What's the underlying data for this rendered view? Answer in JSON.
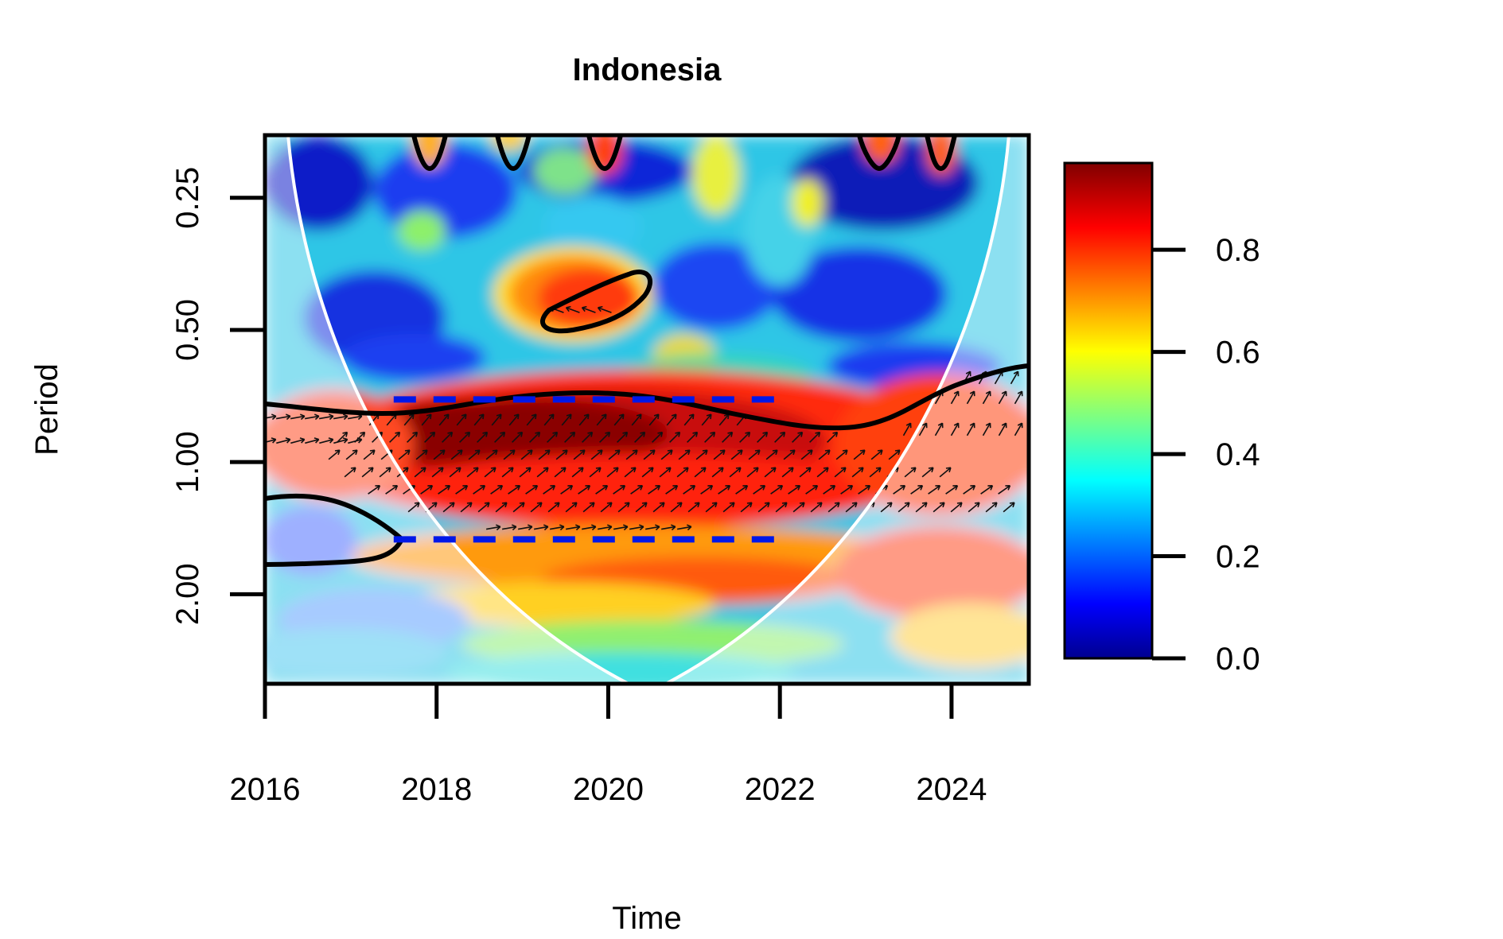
{
  "chart_data": {
    "type": "heatmap",
    "title": "Indonesia",
    "xlabel": "Time",
    "ylabel": "Period",
    "x_ticks": [
      "2016",
      "2018",
      "2020",
      "2022",
      "2024"
    ],
    "x_range": [
      2016,
      2024.9
    ],
    "y_ticks": [
      "0.25",
      "0.50",
      "1.00",
      "2.00"
    ],
    "y_scale": "log2",
    "y_range": [
      0.18,
      3.2
    ],
    "colorbar": {
      "ticks": [
        "0.0",
        "0.2",
        "0.4",
        "0.6",
        "0.8"
      ],
      "range": [
        0,
        0.97
      ],
      "colormap": "jet"
    },
    "significance_contours": [
      "narrow period band near 0.4 around 2019.5",
      "band from period ~0.75 to ~1.7 spanning 2016–2025",
      "region near period 1.5 at 2016–2017"
    ],
    "high_coherence_region": {
      "time_range": [
        2017.2,
        2023.5
      ],
      "period_range": [
        0.75,
        1.6
      ],
      "value": 0.9
    },
    "dashed_lines": [
      {
        "period": 0.72,
        "x_range": [
          2017.5,
          2022
        ]
      },
      {
        "period": 1.5,
        "x_range": [
          2017.5,
          2022
        ]
      }
    ],
    "cone_of_influence": "white U-shaped curve"
  }
}
